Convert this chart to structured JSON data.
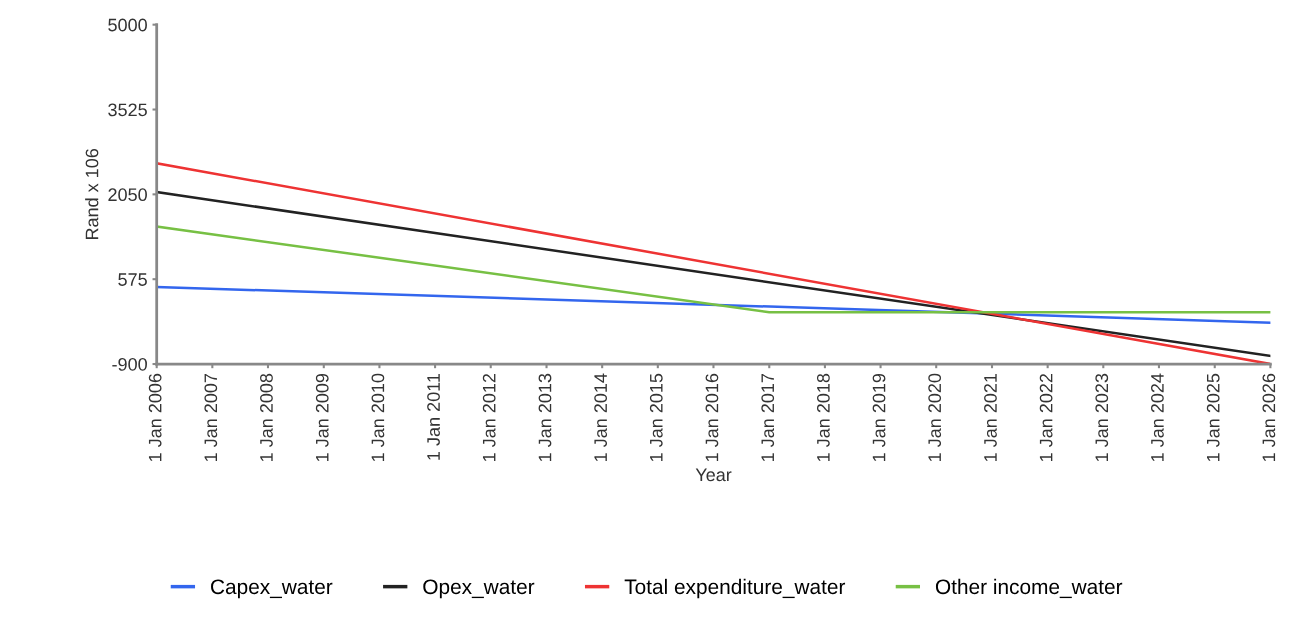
{
  "chart_data": {
    "type": "line",
    "xlabel": "Year",
    "ylabel": "Rand x 106",
    "xlim": [
      "2006-01-01",
      "2026-01-01"
    ],
    "xticks": [
      {
        "value": "2006-01-01",
        "label": "1 Jan 2006"
      },
      {
        "value": "2007-01-01",
        "label": "1 Jan 2007"
      },
      {
        "value": "2008-01-01",
        "label": "1 Jan 2008"
      },
      {
        "value": "2009-01-01",
        "label": "1 Jan 2009"
      },
      {
        "value": "2010-01-01",
        "label": "1 Jan 2010"
      },
      {
        "value": "2011-01-01",
        "label": "1 Jan 2011"
      },
      {
        "value": "2012-01-01",
        "label": "1 Jan 2012"
      },
      {
        "value": "2013-01-01",
        "label": "1 Jan 2013"
      },
      {
        "value": "2014-01-01",
        "label": "1 Jan 2014"
      },
      {
        "value": "2015-01-01",
        "label": "1 Jan 2015"
      },
      {
        "value": "2016-01-01",
        "label": "1 Jan 2016"
      },
      {
        "value": "2017-01-01",
        "label": "1 Jan 2017"
      },
      {
        "value": "2018-01-01",
        "label": "1 Jan 2018"
      },
      {
        "value": "2019-01-01",
        "label": "1 Jan 2019"
      },
      {
        "value": "2020-01-01",
        "label": "1 Jan 2020"
      },
      {
        "value": "2021-01-01",
        "label": "1 Jan 2021"
      },
      {
        "value": "2022-01-01",
        "label": "1 Jan 2022"
      },
      {
        "value": "2023-01-01",
        "label": "1 Jan 2023"
      },
      {
        "value": "2024-01-01",
        "label": "1 Jan 2024"
      },
      {
        "value": "2025-01-01",
        "label": "1 Jan 2025"
      },
      {
        "value": "2026-01-01",
        "label": "1 Jan 2026"
      }
    ],
    "ylim": [
      -900,
      5000
    ],
    "yticks": [
      -900,
      575,
      2050,
      3525,
      5000
    ],
    "grid": false,
    "legend": "bottom",
    "marker": "none",
    "line_style": "solid",
    "series": [
      {
        "name": "Capex_water",
        "color": "#3366ee",
        "x": [
          "2006-01-01",
          "2026-01-01"
        ],
        "values": [
          440,
          -180
        ]
      },
      {
        "name": "Opex_water",
        "color": "#222222",
        "x": [
          "2006-01-01",
          "2026-01-01"
        ],
        "values": [
          2090,
          -760
        ]
      },
      {
        "name": "Total expenditure_water",
        "color": "#ee3333",
        "x": [
          "2006-01-01",
          "2026-01-01"
        ],
        "values": [
          2590,
          -900
        ]
      },
      {
        "name": "Other income_water",
        "color": "#77c044",
        "x": [
          "2006-01-01",
          "2017-01-01",
          "2026-01-01"
        ],
        "values": [
          1490,
          0,
          0
        ]
      }
    ]
  }
}
